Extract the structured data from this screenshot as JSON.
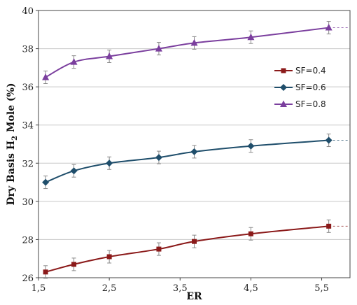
{
  "chart_data": {
    "type": "line",
    "xlabel": "ER",
    "ylabel": "Dry Basis H",
    "ylabel_sub": "2",
    "ylabel_suffix": " Mole (%)",
    "xlim": [
      1.5,
      5.9
    ],
    "ylim": [
      26,
      40
    ],
    "xticks": [
      1.5,
      2.5,
      3.5,
      4.5,
      5.5
    ],
    "xtick_labels": [
      "1,5",
      "2,5",
      "3,5",
      "4,5",
      "5,5"
    ],
    "yticks": [
      26,
      28,
      30,
      32,
      34,
      36,
      38,
      40
    ],
    "ytick_labels": [
      "26",
      "28",
      "30",
      "32",
      "34",
      "36",
      "38",
      "40"
    ],
    "grid": true,
    "legend_position": "right",
    "series": [
      {
        "name": "SF=0.4",
        "color": "#8b1a1a",
        "marker": "square",
        "x": [
          1.6,
          2.0,
          2.5,
          3.2,
          3.7,
          4.5,
          5.6
        ],
        "y": [
          26.3,
          26.7,
          27.1,
          27.5,
          27.9,
          28.3,
          28.7
        ]
      },
      {
        "name": "SF=0.6",
        "color": "#1f4e6b",
        "marker": "diamond",
        "x": [
          1.6,
          2.0,
          2.5,
          3.2,
          3.7,
          4.5,
          5.6
        ],
        "y": [
          31.0,
          31.6,
          32.0,
          32.3,
          32.6,
          32.9,
          33.2
        ]
      },
      {
        "name": "SF=0.8",
        "color": "#7b3f9e",
        "marker": "triangle",
        "x": [
          1.6,
          2.0,
          2.5,
          3.2,
          3.7,
          4.5,
          5.6
        ],
        "y": [
          36.5,
          37.3,
          37.6,
          38.0,
          38.3,
          38.6,
          39.1
        ]
      }
    ]
  }
}
